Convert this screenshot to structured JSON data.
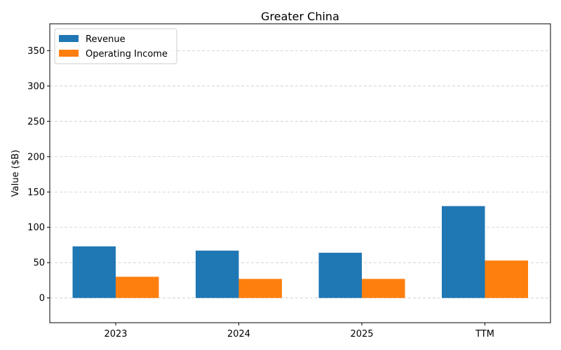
{
  "chart_data": {
    "type": "bar",
    "title": "Greater China",
    "xlabel": "",
    "ylabel": "Value ($B)",
    "categories": [
      "2023",
      "2024",
      "2025",
      "TTM"
    ],
    "series": [
      {
        "name": "Revenue",
        "color": "#1f77b4",
        "values": [
          73,
          67,
          64,
          130
        ]
      },
      {
        "name": "Operating Income",
        "color": "#ff7f0e",
        "values": [
          30,
          27,
          27,
          53
        ]
      }
    ],
    "ylim": [
      -35,
      388
    ],
    "yticks": [
      0,
      50,
      100,
      150,
      200,
      250,
      300,
      350
    ],
    "grid": "horizontal dashed",
    "legend_position": "top-left"
  }
}
